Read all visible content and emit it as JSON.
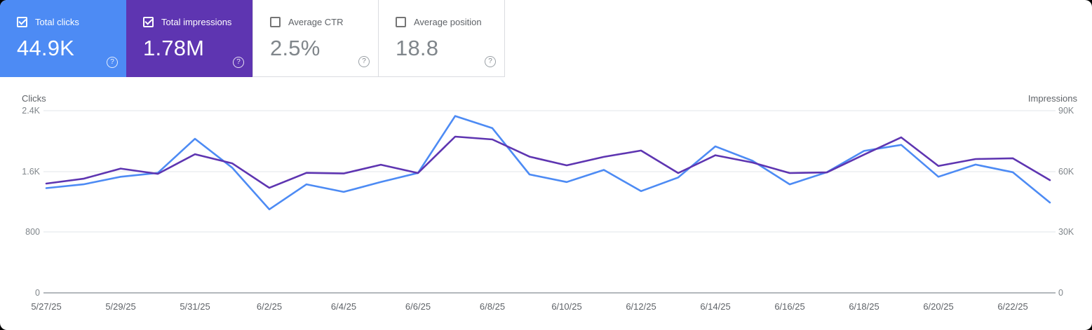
{
  "app": "Search Console Performance",
  "icons": {
    "help_glyph": "?"
  },
  "cards": [
    {
      "id": "total-clicks",
      "label": "Total clicks",
      "value": "44.9K",
      "checked": true,
      "bg": "#4d8bf4",
      "text": "#ffffff"
    },
    {
      "id": "total-impressions",
      "label": "Total impressions",
      "value": "1.78M",
      "checked": true,
      "bg": "#5e35b1",
      "text": "#ffffff"
    },
    {
      "id": "average-ctr",
      "label": "Average CTR",
      "value": "2.5%",
      "checked": false,
      "bg": "#ffffff",
      "text": "#80868b"
    },
    {
      "id": "average-position",
      "label": "Average position",
      "value": "18.8",
      "checked": false,
      "bg": "#ffffff",
      "text": "#80868b"
    }
  ],
  "chart_data": {
    "type": "line",
    "x": [
      "5/27/25",
      "5/28/25",
      "5/29/25",
      "5/30/25",
      "5/31/25",
      "6/1/25",
      "6/2/25",
      "6/3/25",
      "6/4/25",
      "6/5/25",
      "6/6/25",
      "6/7/25",
      "6/8/25",
      "6/9/25",
      "6/10/25",
      "6/11/25",
      "6/12/25",
      "6/13/25",
      "6/14/25",
      "6/15/25",
      "6/16/25",
      "6/17/25",
      "6/18/25",
      "6/19/25",
      "6/20/25",
      "6/21/25",
      "6/22/25",
      "6/23/25"
    ],
    "x_tick_labels": [
      "5/27/25",
      "5/29/25",
      "5/31/25",
      "6/2/25",
      "6/4/25",
      "6/6/25",
      "6/8/25",
      "6/10/25",
      "6/12/25",
      "6/14/25",
      "6/16/25",
      "6/18/25",
      "6/20/25",
      "6/22/25"
    ],
    "series": [
      {
        "name": "Clicks",
        "axis": "left",
        "color": "#4d8bf4",
        "values": [
          1380,
          1430,
          1530,
          1580,
          2030,
          1650,
          1100,
          1430,
          1330,
          1460,
          1580,
          2330,
          2170,
          1560,
          1460,
          1620,
          1340,
          1520,
          1930,
          1740,
          1430,
          1590,
          1870,
          1950,
          1530,
          1690,
          1590,
          1190
        ]
      },
      {
        "name": "Impressions",
        "axis": "right",
        "color": "#5e35b1",
        "values": [
          54000,
          56400,
          61400,
          58800,
          68500,
          64000,
          51900,
          59300,
          59000,
          63300,
          59200,
          77200,
          75800,
          67300,
          63000,
          67200,
          70300,
          59200,
          68000,
          64400,
          59200,
          59500,
          68300,
          76800,
          62700,
          66100,
          66500,
          55700
        ]
      }
    ],
    "left_axis": {
      "title": "Clicks",
      "ticks": [
        "2.4K",
        "1.6K",
        "800",
        "0"
      ],
      "min": 0,
      "max": 2400
    },
    "right_axis": {
      "title": "Impressions",
      "ticks": [
        "90K",
        "60K",
        "30K",
        "0"
      ],
      "min": 0,
      "max": 90000
    },
    "grid": true,
    "legend_position": "none",
    "colors": {
      "grid": "#e8eaed",
      "baseline": "#9aa0a6"
    }
  }
}
